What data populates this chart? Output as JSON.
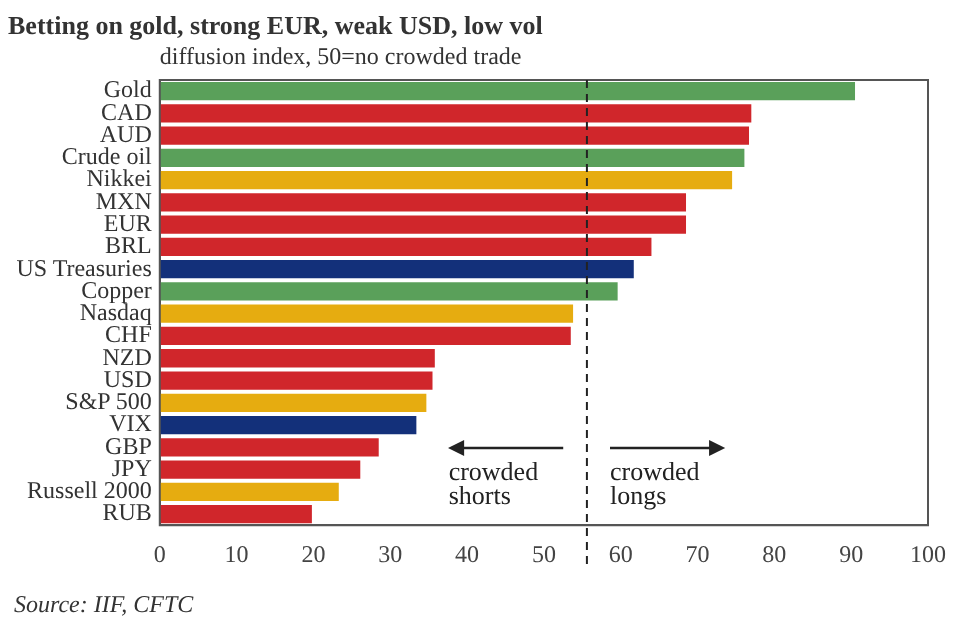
{
  "chart_data": {
    "type": "bar",
    "orientation": "horizontal",
    "title": "Betting on gold, strong EUR, weak USD, low vol",
    "subtitle": "diffusion index, 50=no crowded trade",
    "categories": [
      "Gold",
      "CAD",
      "AUD",
      "Crude oil",
      "Nikkei",
      "MXN",
      "EUR",
      "BRL",
      "US Treasuries",
      "Copper",
      "Nasdaq",
      "CHF",
      "NZD",
      "USD",
      "S&P 500",
      "VIX",
      "GBP",
      "JPY",
      "Russell 2000",
      "RUB"
    ],
    "values": [
      90.5,
      77,
      76.7,
      76.1,
      74.5,
      68.5,
      68.5,
      64,
      61.7,
      59.6,
      53.8,
      53.5,
      35.8,
      35.5,
      34.7,
      33.4,
      28.5,
      26.1,
      23.3,
      19.8
    ],
    "colors": [
      "#5aa05a",
      "#d0262b",
      "#d0262b",
      "#5aa05a",
      "#e6ac10",
      "#d0262b",
      "#d0262b",
      "#d0262b",
      "#13307a",
      "#5aa05a",
      "#e6ac10",
      "#d0262b",
      "#d0262b",
      "#d0262b",
      "#e6ac10",
      "#13307a",
      "#d0262b",
      "#d0262b",
      "#e6ac10",
      "#d0262b"
    ],
    "xlim": [
      0,
      100
    ],
    "xticks": [
      0,
      10,
      20,
      30,
      40,
      50,
      60,
      70,
      80,
      90,
      100
    ],
    "ref_lines": [
      {
        "axis": "x",
        "value": 55.6,
        "line_style": "dashed",
        "color": "#222222"
      }
    ],
    "annotations": [
      "crowded shorts",
      "crowded longs",
      "Source: IIF, CFTC"
    ],
    "grid": false,
    "legend": false
  }
}
